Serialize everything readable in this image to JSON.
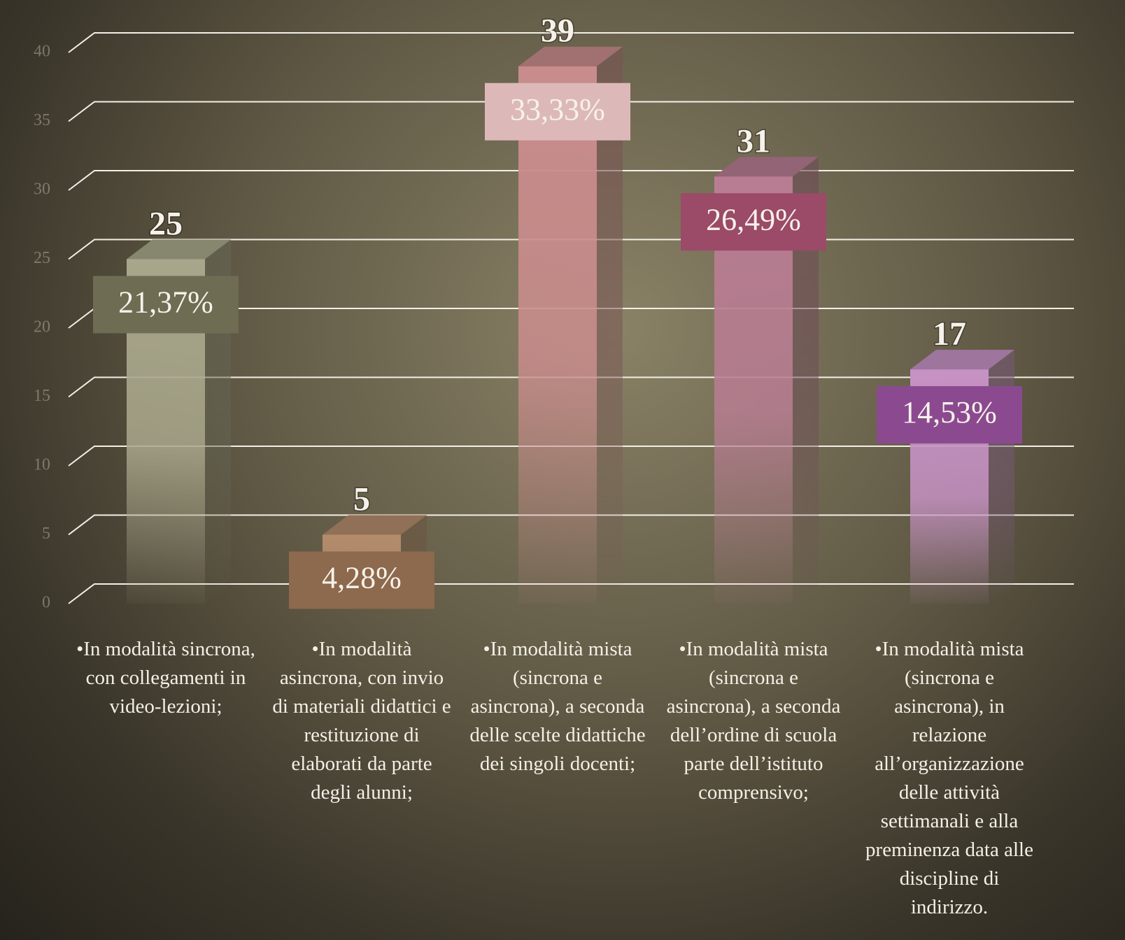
{
  "chart_data": {
    "type": "bar3d",
    "categories": [
      "•In modalità sincrona, con collegamenti in video-lezioni;",
      "•In modalità asincrona, con invio di materiali didattici e restituzione di elaborati da parte degli alunni;",
      "•In modalità mista (sincrona e asincrona), a seconda delle scelte didattiche dei singoli docenti;",
      "•In modalità mista (sincrona e asincrona), a seconda dell’ordine di scuola parte dell’istituto comprensivo;",
      "•In modalità mista (sincrona e asincrona), in relazione all’organizzazione delle attività settimanali e alla preminenza data alle discipline di indirizzo."
    ],
    "values": [
      25,
      5,
      39,
      31,
      17
    ],
    "annotations": [
      "21,37%",
      "4,28%",
      "33,33%",
      "26,49%",
      "14,53%"
    ],
    "colors": [
      "#a9a78b",
      "#b48c6c",
      "#c98c8c",
      "#b87d92",
      "#c692c4"
    ],
    "annotation_colors": [
      "#6e6c52",
      "#8d694d",
      "#dcb9b8",
      "#9b4a68",
      "#8b4a90"
    ],
    "ylim": [
      0,
      40
    ],
    "yticks": [
      0,
      5,
      10,
      15,
      20,
      25,
      30,
      35,
      40
    ],
    "grid": true
  }
}
